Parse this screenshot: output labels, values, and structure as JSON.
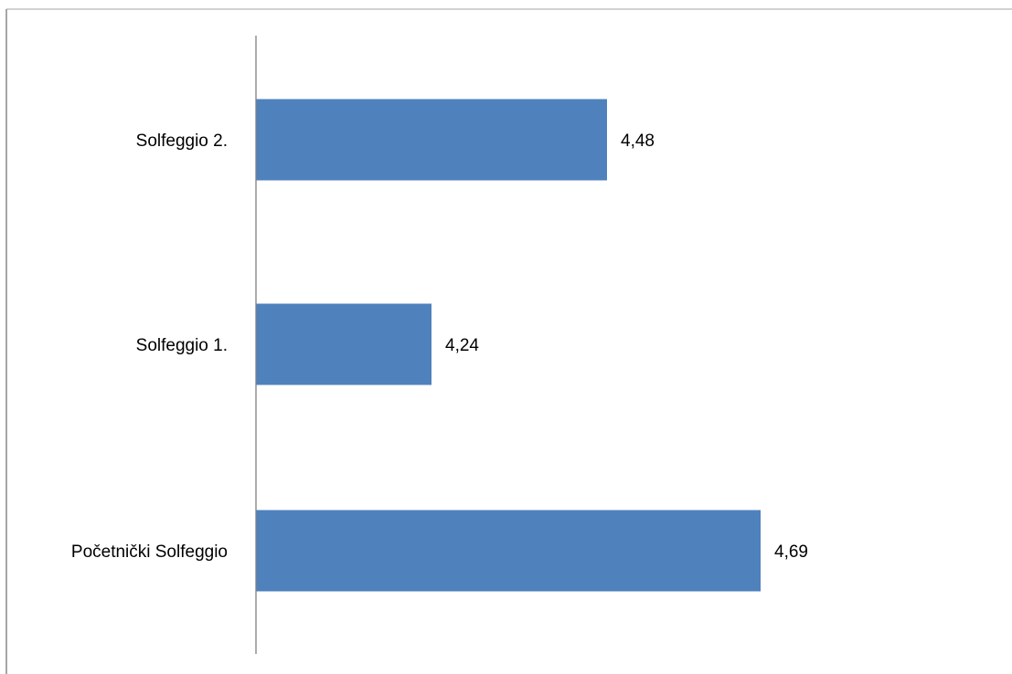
{
  "chart_data": {
    "type": "bar",
    "orientation": "horizontal",
    "categories": [
      "Solfeggio 2.",
      "Solfeggio 1.",
      "Početnički Solfeggio"
    ],
    "values": [
      4.48,
      4.24,
      4.69
    ],
    "value_labels": [
      "4,48",
      "4,24",
      "4,69"
    ],
    "title": "",
    "xlabel": "",
    "ylabel": "",
    "xlim": [
      4.0,
      4.7
    ],
    "grid": false,
    "legend": "none"
  },
  "colors": {
    "bar": "#4f81bd",
    "axis": "#808080",
    "border": "#a6a6a6"
  }
}
